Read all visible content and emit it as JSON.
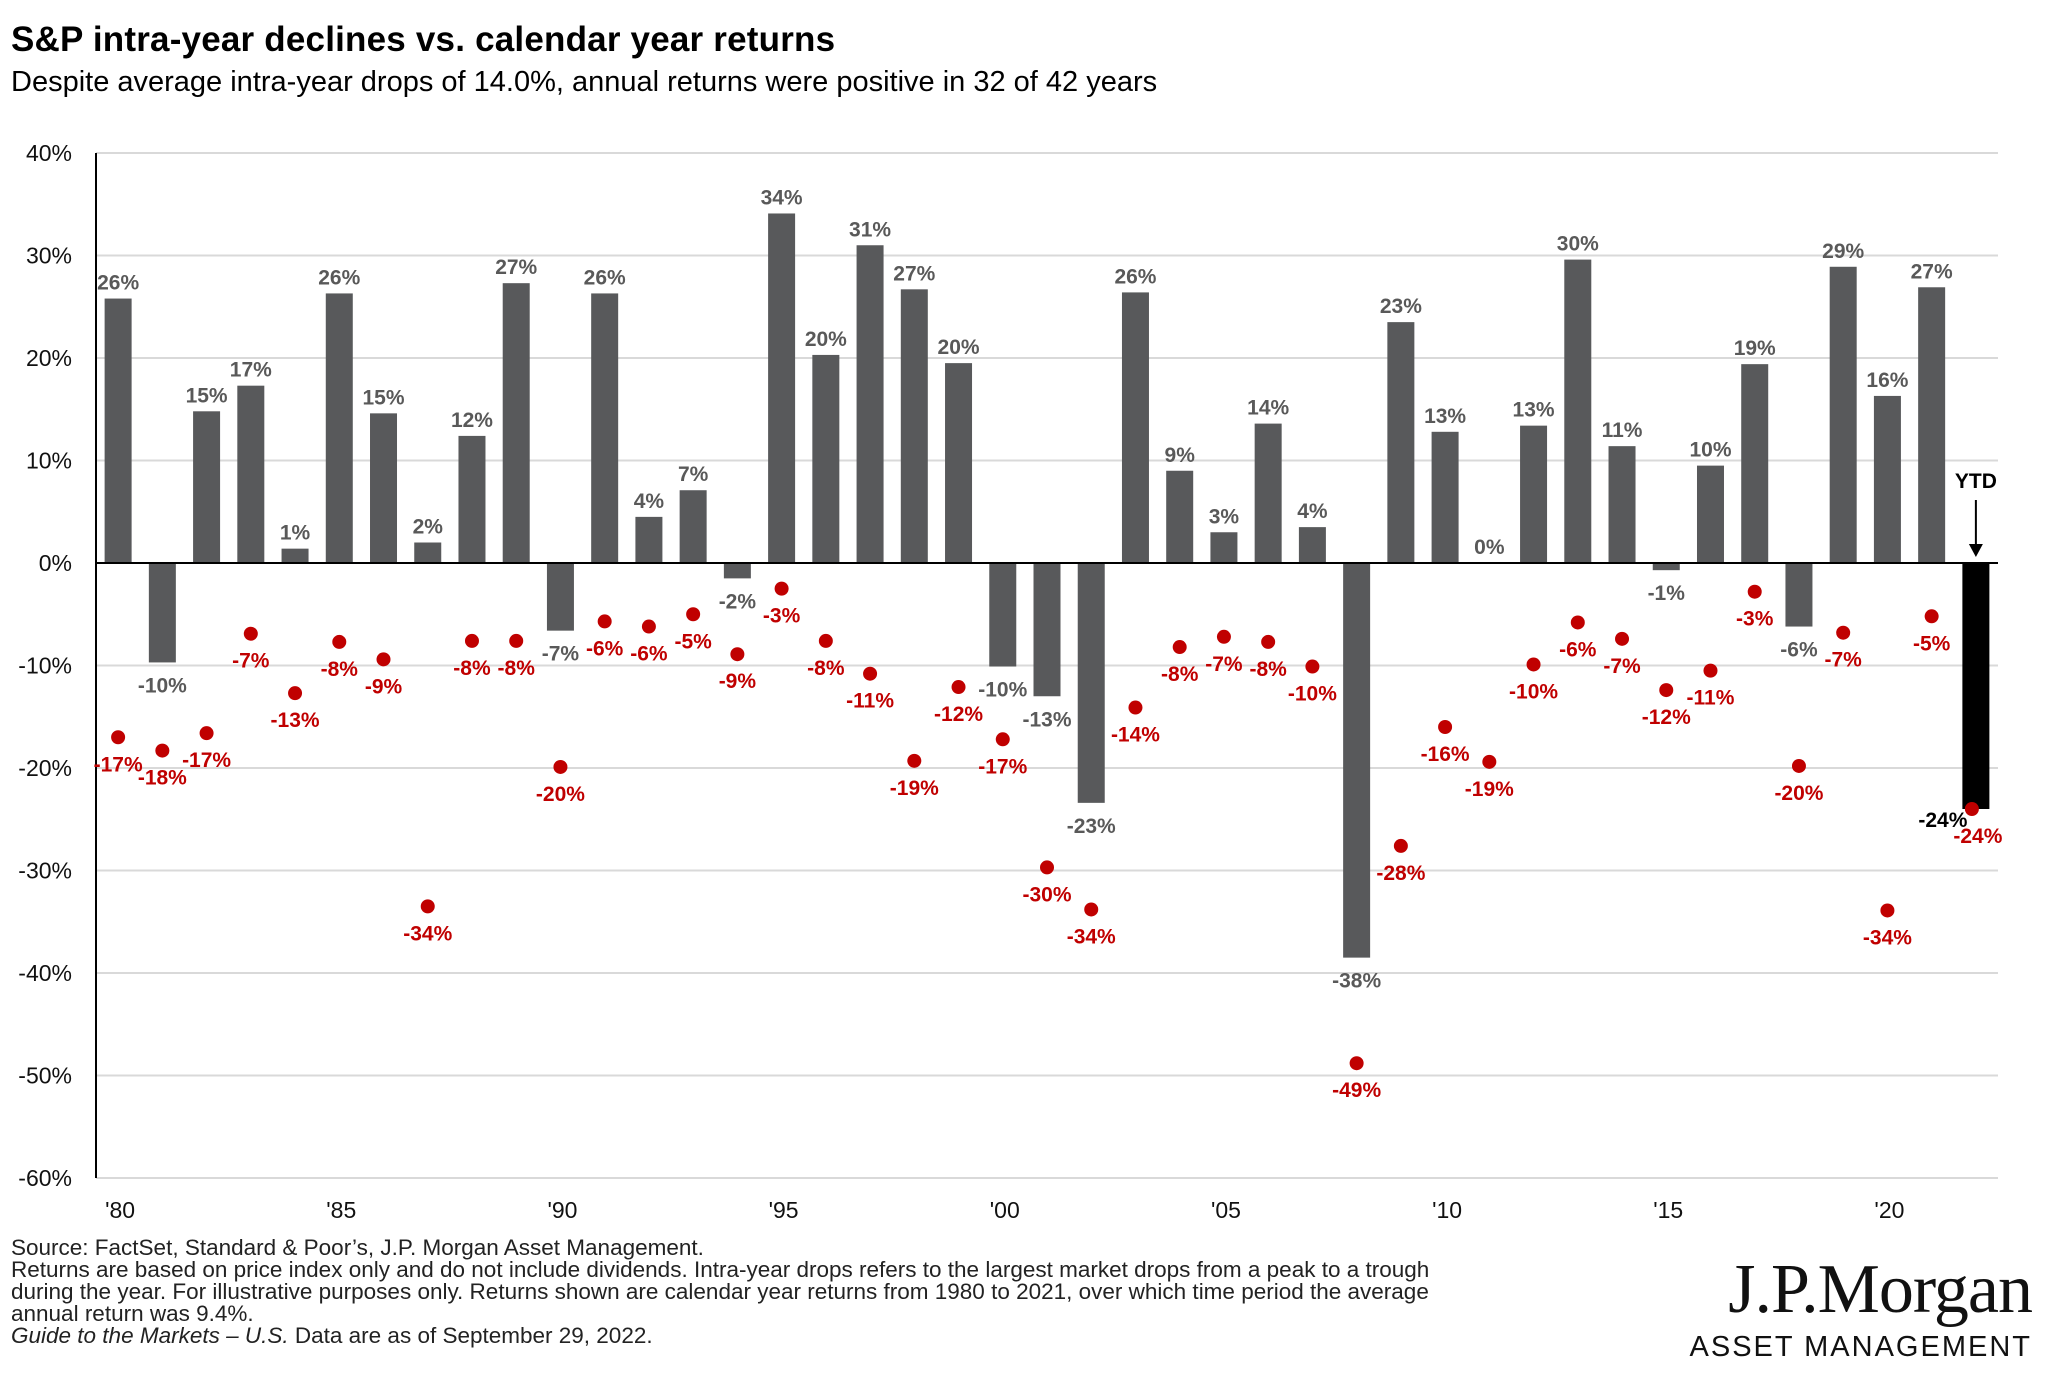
{
  "header": {
    "title": "S&P intra-year declines vs. calendar year returns",
    "subtitle": "Despite average intra-year drops of 14.0%, annual returns were positive in 32 of 42 years"
  },
  "chart_data": {
    "type": "bar",
    "title": "S&P intra-year declines vs. calendar year returns",
    "subtitle": "Despite average intra-year drops of 14.0%, annual returns were positive in 32 of 42 years",
    "ylim": [
      -60,
      40
    ],
    "y_ticks": [
      40,
      30,
      20,
      10,
      0,
      -10,
      -20,
      -30,
      -40,
      -50,
      -60
    ],
    "y_tick_labels": [
      "40%",
      "30%",
      "20%",
      "10%",
      "0%",
      "-10%",
      "-20%",
      "-30%",
      "-40%",
      "-50%",
      "-60%"
    ],
    "x_tick_labels": [
      {
        "year": 1980,
        "label": "'80"
      },
      {
        "year": 1985,
        "label": "'85"
      },
      {
        "year": 1990,
        "label": "'90"
      },
      {
        "year": 1995,
        "label": "'95"
      },
      {
        "year": 2000,
        "label": "'00"
      },
      {
        "year": 2005,
        "label": "'05"
      },
      {
        "year": 2010,
        "label": "'10"
      },
      {
        "year": 2015,
        "label": "'15"
      },
      {
        "year": 2020,
        "label": "'20"
      }
    ],
    "grid": true,
    "years": [
      1980,
      1981,
      1982,
      1983,
      1984,
      1985,
      1986,
      1987,
      1988,
      1989,
      1990,
      1991,
      1992,
      1993,
      1994,
      1995,
      1996,
      1997,
      1998,
      1999,
      2000,
      2001,
      2002,
      2003,
      2004,
      2005,
      2006,
      2007,
      2008,
      2009,
      2010,
      2011,
      2012,
      2013,
      2014,
      2015,
      2016,
      2017,
      2018,
      2019,
      2020,
      2021,
      2022
    ],
    "series": [
      {
        "kind": "bar",
        "color": "#58595b",
        "values": [
          25.8,
          -9.7,
          14.8,
          17.3,
          1.4,
          26.3,
          14.6,
          2.0,
          12.4,
          27.3,
          -6.6,
          26.3,
          4.5,
          7.1,
          -1.5,
          34.1,
          20.3,
          31.0,
          26.7,
          19.5,
          -10.1,
          -13.0,
          -23.4,
          26.4,
          9.0,
          3.0,
          13.6,
          3.5,
          -38.5,
          23.5,
          12.8,
          0.0,
          13.4,
          29.6,
          11.4,
          -0.7,
          9.5,
          19.4,
          -6.2,
          28.9,
          16.3,
          26.9,
          -24.0
        ],
        "labels": [
          "26%",
          "-10%",
          "15%",
          "17%",
          "1%",
          "26%",
          "15%",
          "2%",
          "12%",
          "27%",
          "-7%",
          "26%",
          "4%",
          "7%",
          "-2%",
          "34%",
          "20%",
          "31%",
          "27%",
          "20%",
          "-10%",
          "-13%",
          "-23%",
          "26%",
          "9%",
          "3%",
          "14%",
          "4%",
          "-38%",
          "23%",
          "13%",
          "0%",
          "13%",
          "30%",
          "11%",
          "-1%",
          "10%",
          "19%",
          "-6%",
          "29%",
          "16%",
          "27%",
          "-24%"
        ]
      },
      {
        "kind": "dot",
        "color": "#c00000",
        "values": [
          -17,
          -18.3,
          -16.6,
          -6.9,
          -12.7,
          -7.7,
          -9.4,
          -33.5,
          -7.6,
          -7.6,
          -19.9,
          -5.7,
          -6.2,
          -5.0,
          -8.9,
          -2.5,
          -7.6,
          -10.8,
          -19.3,
          -12.1,
          -17.2,
          -29.7,
          -33.8,
          -14.1,
          -8.2,
          -7.2,
          -7.7,
          -10.1,
          -48.8,
          -27.6,
          -16.0,
          -19.4,
          -9.9,
          -5.8,
          -7.4,
          -12.4,
          -10.5,
          -2.8,
          -19.8,
          -6.8,
          -33.9,
          -5.2,
          -24.0
        ],
        "labels": [
          "-17%",
          "-18%",
          "-17%",
          "-7%",
          "-13%",
          "-8%",
          "-9%",
          "-34%",
          "-8%",
          "-8%",
          "-20%",
          "-6%",
          "-6%",
          "-5%",
          "-9%",
          "-3%",
          "-8%",
          "-11%",
          "-19%",
          "-12%",
          "-17%",
          "-30%",
          "-34%",
          "-14%",
          "-8%",
          "-7%",
          "-8%",
          "-10%",
          "-49%",
          "-28%",
          "-16%",
          "-19%",
          "-10%",
          "-6%",
          "-7%",
          "-12%",
          "-11%",
          "-3%",
          "-20%",
          "-7%",
          "-34%",
          "-5%",
          "-24%"
        ]
      }
    ],
    "annotations": [
      {
        "text": "YTD",
        "year": 2022,
        "note": "arrow pointing to final bar"
      }
    ],
    "colors": {
      "bar": "#58595b",
      "ytd_bar": "#000000",
      "dot": "#c00000",
      "grid": "#d9d9d9"
    }
  },
  "footer": {
    "source": "Source: FactSet, Standard & Poor’s, J.P. Morgan Asset Management.",
    "note_line1": "Returns are based on price index only and do not include dividends. Intra-year drops refers to the largest market drops from a peak to a trough",
    "note_line2": "during the year. For illustrative purposes only. Returns shown are calendar year returns from 1980 to 2021, over which time period the average",
    "note_line3": "annual return was 9.4%.",
    "guide_title": "Guide to the Markets – U.S.",
    "guide_date": " Data are as of September 29, 2022."
  },
  "logo": {
    "brand": "J.P.Morgan",
    "sub": "ASSET MANAGEMENT"
  }
}
